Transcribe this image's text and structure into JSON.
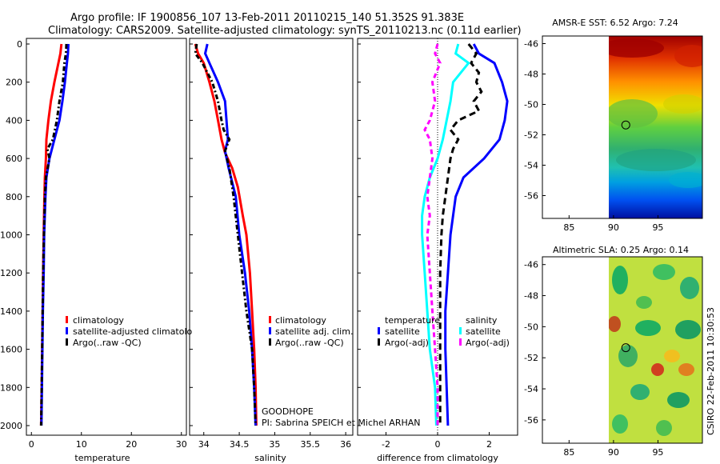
{
  "header": {
    "line1": "Argo profile: IF 1900856_107 13-Feb-2011 20110215_140 51.352S 91.383E",
    "line2": "Climatology: CARS2009. Satellite-adjusted climatology: synTS_20110213.nc (0.11d earlier)"
  },
  "colors": {
    "climatology": "#ff0000",
    "satellite": "#0000ff",
    "argo": "#000000",
    "sal_satellite": "#00ffff",
    "sal_argo": "#ff00ff"
  },
  "chart_data": [
    {
      "type": "line",
      "title": "",
      "xlabel": "temperature",
      "ylabel": "",
      "xlim": [
        -1,
        31
      ],
      "ylim": [
        2040,
        0
      ],
      "xticks": [
        0,
        10,
        20,
        30
      ],
      "yticks": [
        0,
        200,
        400,
        600,
        800,
        1000,
        1200,
        1400,
        1600,
        1800,
        2000
      ],
      "legend": [
        "climatology",
        "satellite-adjusted climatolo",
        "Argo(..raw -QC)"
      ],
      "series": [
        {
          "name": "climatology",
          "color": "#ff0000",
          "dash": "",
          "points": [
            [
              6.0,
              0
            ],
            [
              5.8,
              50
            ],
            [
              5.4,
              100
            ],
            [
              4.6,
              200
            ],
            [
              3.9,
              300
            ],
            [
              3.4,
              400
            ],
            [
              3.0,
              500
            ],
            [
              2.9,
              600
            ],
            [
              2.7,
              700
            ],
            [
              2.6,
              800
            ],
            [
              2.45,
              1000
            ],
            [
              2.35,
              1200
            ],
            [
              2.25,
              1400
            ],
            [
              2.15,
              1600
            ],
            [
              2.05,
              1800
            ],
            [
              1.95,
              2000
            ]
          ]
        },
        {
          "name": "satellite-adjusted climatolo",
          "color": "#0000ff",
          "dash": "",
          "points": [
            [
              7.4,
              0
            ],
            [
              7.3,
              50
            ],
            [
              7.1,
              100
            ],
            [
              6.7,
              200
            ],
            [
              6.2,
              300
            ],
            [
              5.6,
              400
            ],
            [
              4.6,
              500
            ],
            [
              3.6,
              600
            ],
            [
              3.0,
              700
            ],
            [
              2.8,
              800
            ],
            [
              2.55,
              1000
            ],
            [
              2.45,
              1200
            ],
            [
              2.3,
              1400
            ],
            [
              2.2,
              1600
            ],
            [
              2.1,
              1800
            ],
            [
              2.0,
              2000
            ]
          ]
        },
        {
          "name": "Argo(..raw -QC)",
          "color": "#000000",
          "dash": "6,3,2,3",
          "points": [
            [
              7.0,
              0
            ],
            [
              6.9,
              50
            ],
            [
              6.6,
              100
            ],
            [
              6.3,
              200
            ],
            [
              5.6,
              300
            ],
            [
              5.1,
              400
            ],
            [
              4.3,
              500
            ],
            [
              3.2,
              550
            ],
            [
              3.6,
              600
            ],
            [
              2.9,
              700
            ],
            [
              2.7,
              800
            ],
            [
              2.5,
              1000
            ],
            [
              2.35,
              1200
            ],
            [
              2.25,
              1400
            ],
            [
              2.15,
              1600
            ],
            [
              2.05,
              1800
            ],
            [
              1.95,
              2000
            ]
          ]
        }
      ]
    },
    {
      "type": "line",
      "title": "",
      "xlabel": "salinity",
      "ylabel": "",
      "xlim": [
        33.8,
        36.1
      ],
      "ylim": [
        2040,
        0
      ],
      "xticks": [
        34,
        34.5,
        35,
        35.5,
        36
      ],
      "xticklabels": [
        "34",
        "34.5",
        "35",
        "35.5",
        "36"
      ],
      "legend": [
        "climatology",
        "satellite adj. clim.",
        "Argo(..raw -QC)"
      ],
      "series": [
        {
          "name": "climatology",
          "color": "#ff0000",
          "dash": "",
          "points": [
            [
              33.88,
              0
            ],
            [
              33.92,
              50
            ],
            [
              34.0,
              100
            ],
            [
              34.08,
              200
            ],
            [
              34.15,
              300
            ],
            [
              34.2,
              400
            ],
            [
              34.25,
              500
            ],
            [
              34.3,
              570
            ],
            [
              34.4,
              650
            ],
            [
              34.48,
              750
            ],
            [
              34.55,
              900
            ],
            [
              34.6,
              1000
            ],
            [
              34.65,
              1200
            ],
            [
              34.68,
              1400
            ],
            [
              34.71,
              1600
            ],
            [
              34.73,
              1800
            ],
            [
              34.74,
              2000
            ]
          ]
        },
        {
          "name": "satellite adj. clim.",
          "color": "#0000ff",
          "dash": "",
          "points": [
            [
              34.05,
              0
            ],
            [
              34.02,
              50
            ],
            [
              34.08,
              100
            ],
            [
              34.2,
              200
            ],
            [
              34.3,
              300
            ],
            [
              34.32,
              400
            ],
            [
              34.34,
              500
            ],
            [
              34.3,
              560
            ],
            [
              34.35,
              650
            ],
            [
              34.45,
              800
            ],
            [
              34.5,
              1000
            ],
            [
              34.58,
              1200
            ],
            [
              34.64,
              1400
            ],
            [
              34.68,
              1600
            ],
            [
              34.71,
              1800
            ],
            [
              34.73,
              2000
            ]
          ]
        },
        {
          "name": "Argo(..raw -QC)",
          "color": "#000000",
          "dash": "6,3,2,3",
          "points": [
            [
              33.9,
              0
            ],
            [
              33.88,
              50
            ],
            [
              33.98,
              100
            ],
            [
              34.12,
              200
            ],
            [
              34.2,
              300
            ],
            [
              34.25,
              400
            ],
            [
              34.28,
              450
            ],
            [
              34.36,
              500
            ],
            [
              34.3,
              560
            ],
            [
              34.36,
              650
            ],
            [
              34.42,
              800
            ],
            [
              34.48,
              1000
            ],
            [
              34.54,
              1200
            ],
            [
              34.6,
              1400
            ],
            [
              34.68,
              1600
            ],
            [
              34.71,
              1800
            ],
            [
              34.73,
              2000
            ]
          ]
        }
      ],
      "annotations": [
        "GOODHOPE",
        "PI: Sabrina SPEICH et Michel ARHAN"
      ]
    },
    {
      "type": "line",
      "title": "",
      "xlabel": "difference from climatology",
      "ylabel": "",
      "xlim": [
        -3.1,
        3.1
      ],
      "ylim": [
        2040,
        0
      ],
      "xticks": [
        -2,
        0,
        2
      ],
      "legend": [
        "temperature",
        "satellite",
        "Argo(-adj)",
        "salinity",
        "satellite",
        "Argo(-adj)"
      ],
      "series": [
        {
          "name": "temperature satellite",
          "color": "#0000ff",
          "dash": "",
          "points": [
            [
              1.4,
              0
            ],
            [
              1.6,
              50
            ],
            [
              2.2,
              100
            ],
            [
              2.5,
              200
            ],
            [
              2.7,
              300
            ],
            [
              2.6,
              400
            ],
            [
              2.4,
              500
            ],
            [
              1.8,
              600
            ],
            [
              1.0,
              700
            ],
            [
              0.7,
              800
            ],
            [
              0.5,
              1000
            ],
            [
              0.4,
              1200
            ],
            [
              0.3,
              1400
            ],
            [
              0.3,
              1600
            ],
            [
              0.35,
              1800
            ],
            [
              0.4,
              2000
            ]
          ]
        },
        {
          "name": "temperature Argo(-adj)",
          "color": "#000000",
          "dash": "8,5",
          "points": [
            [
              1.2,
              0
            ],
            [
              1.5,
              50
            ],
            [
              1.3,
              100
            ],
            [
              1.6,
              150
            ],
            [
              1.5,
              200
            ],
            [
              1.7,
              250
            ],
            [
              1.4,
              300
            ],
            [
              1.6,
              350
            ],
            [
              0.8,
              400
            ],
            [
              0.5,
              450
            ],
            [
              0.8,
              500
            ],
            [
              0.6,
              550
            ],
            [
              0.5,
              600
            ],
            [
              0.4,
              700
            ],
            [
              0.3,
              800
            ],
            [
              0.2,
              900
            ],
            [
              0.15,
              1000
            ],
            [
              0.1,
              1200
            ],
            [
              0.1,
              1400
            ],
            [
              0.1,
              1600
            ],
            [
              0.1,
              1800
            ],
            [
              0.1,
              2000
            ]
          ]
        },
        {
          "name": "salinity satellite",
          "color": "#00ffff",
          "dash": "",
          "points": [
            [
              0.8,
              0
            ],
            [
              0.7,
              50
            ],
            [
              1.2,
              100
            ],
            [
              0.6,
              200
            ],
            [
              0.5,
              300
            ],
            [
              0.2,
              500
            ],
            [
              0.0,
              600
            ],
            [
              -0.3,
              700
            ],
            [
              -0.5,
              800
            ],
            [
              -0.6,
              900
            ],
            [
              -0.6,
              1000
            ],
            [
              -0.5,
              1200
            ],
            [
              -0.4,
              1400
            ],
            [
              -0.3,
              1600
            ],
            [
              -0.1,
              1800
            ],
            [
              -0.05,
              2000
            ]
          ]
        },
        {
          "name": "salinity Argo(-adj)",
          "color": "#ff00ff",
          "dash": "6,4",
          "points": [
            [
              0.0,
              0
            ],
            [
              -0.1,
              50
            ],
            [
              0.1,
              100
            ],
            [
              -0.2,
              200
            ],
            [
              -0.1,
              300
            ],
            [
              -0.3,
              400
            ],
            [
              -0.5,
              450
            ],
            [
              -0.3,
              500
            ],
            [
              -0.2,
              600
            ],
            [
              -0.3,
              700
            ],
            [
              -0.4,
              800
            ],
            [
              -0.3,
              900
            ],
            [
              -0.4,
              1000
            ],
            [
              -0.3,
              1200
            ],
            [
              -0.2,
              1400
            ],
            [
              -0.1,
              1600
            ],
            [
              0.0,
              1800
            ],
            [
              0.0,
              2000
            ]
          ]
        }
      ]
    },
    {
      "type": "heatmap",
      "title": "AMSR-E SST: 6.52 Argo: 7.24",
      "xlim": [
        82,
        100
      ],
      "ylim": [
        -57.5,
        -45.5
      ],
      "xticks": [
        85,
        90,
        95
      ],
      "yticks": [
        -46,
        -48,
        -50,
        -52,
        -54,
        -56
      ],
      "data_xrange": [
        90,
        100
      ],
      "marker": {
        "lon": 91.383,
        "lat": -51.352
      }
    },
    {
      "type": "heatmap",
      "title": "Altimetric SLA: 0.25 Argo: 0.14",
      "xlim": [
        82,
        100
      ],
      "ylim": [
        -57.5,
        -45.5
      ],
      "xticks": [
        85,
        90,
        95
      ],
      "yticks": [
        -46,
        -48,
        -50,
        -52,
        -54,
        -56
      ],
      "data_xrange": [
        90,
        100
      ],
      "marker": {
        "lon": 91.383,
        "lat": -51.352
      }
    }
  ],
  "footer_stamp": "CSIRO 22-Feb-2011 10:30:53"
}
